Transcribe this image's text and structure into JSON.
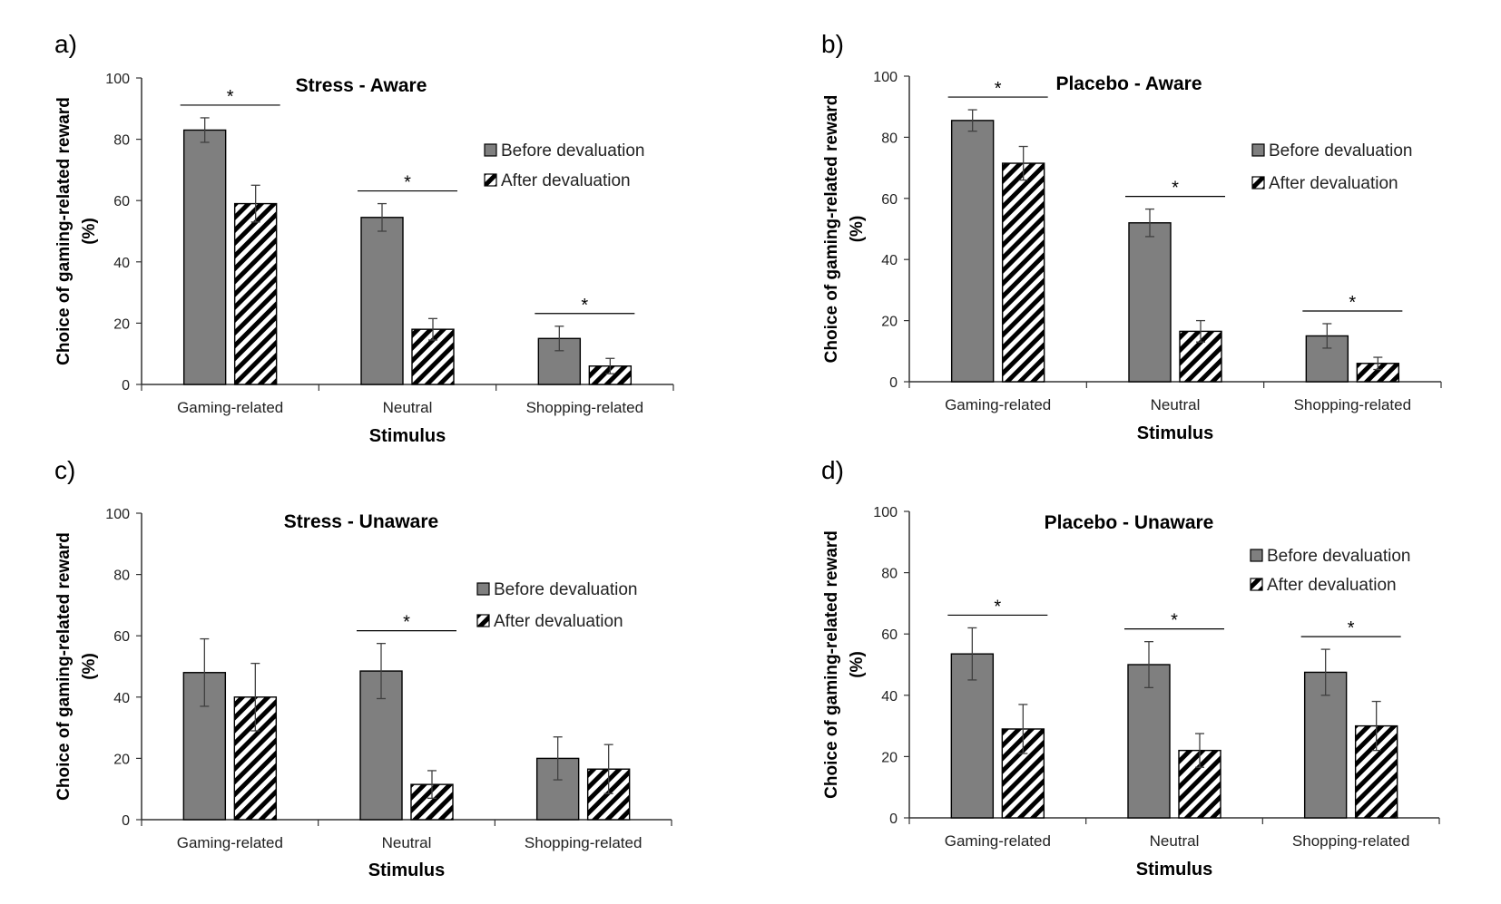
{
  "legend": {
    "before": "Before devaluation",
    "after": "After devaluation"
  },
  "colors": {
    "before_fill": "#7f7f7f",
    "axis": "#333333",
    "errorbar": "#404040"
  },
  "chart_data": [
    {
      "letter": "a)",
      "type": "bar",
      "title": "Stress - Aware",
      "xlabel": "Stimulus",
      "ylabel_line1": "Choice of gaming-related reward",
      "ylabel_line2": "(%)",
      "ylim": [
        0,
        100
      ],
      "yticks": [
        "0",
        "20",
        "40",
        "60",
        "80",
        "100"
      ],
      "categories": [
        "Gaming-related",
        "Neutral",
        "Shopping-related"
      ],
      "series": [
        {
          "name": "Before devaluation",
          "values": [
            83,
            54.5,
            15
          ],
          "errors": [
            4,
            4.5,
            4
          ]
        },
        {
          "name": "After devaluation",
          "values": [
            59,
            18,
            6
          ],
          "errors": [
            6,
            3.5,
            2.5
          ]
        }
      ],
      "significance": [
        "*",
        "*",
        "*"
      ]
    },
    {
      "letter": "b)",
      "type": "bar",
      "title": "Placebo - Aware",
      "xlabel": "Stimulus",
      "ylabel_line1": "Choice of gaming-related reward",
      "ylabel_line2": "(%)",
      "ylim": [
        0,
        100
      ],
      "yticks": [
        "0",
        "20",
        "40",
        "60",
        "80",
        "100"
      ],
      "categories": [
        "Gaming-related",
        "Neutral",
        "Shopping-related"
      ],
      "series": [
        {
          "name": "Before devaluation",
          "values": [
            85.5,
            52,
            15
          ],
          "errors": [
            3.5,
            4.5,
            4
          ]
        },
        {
          "name": "After devaluation",
          "values": [
            71.5,
            16.5,
            6
          ],
          "errors": [
            5.5,
            3.5,
            2
          ]
        }
      ],
      "significance": [
        "*",
        "*",
        "*"
      ]
    },
    {
      "letter": "c)",
      "type": "bar",
      "title": "Stress - Unaware",
      "xlabel": "Stimulus",
      "ylabel_line1": "Choice of gaming-related reward",
      "ylabel_line2": "(%)",
      "ylim": [
        0,
        100
      ],
      "yticks": [
        "0",
        "20",
        "40",
        "60",
        "80",
        "100"
      ],
      "categories": [
        "Gaming-related",
        "Neutral",
        "Shopping-related"
      ],
      "series": [
        {
          "name": "Before devaluation",
          "values": [
            48,
            48.5,
            20
          ],
          "errors": [
            11,
            9,
            7
          ]
        },
        {
          "name": "After devaluation",
          "values": [
            40,
            11.5,
            16.5
          ],
          "errors": [
            11,
            4.5,
            8
          ]
        }
      ],
      "significance": [
        "",
        "*",
        ""
      ]
    },
    {
      "letter": "d)",
      "type": "bar",
      "title": "Placebo - Unaware",
      "xlabel": "Stimulus",
      "ylabel_line1": "Choice of gaming-related reward",
      "ylabel_line2": "(%)",
      "ylim": [
        0,
        100
      ],
      "yticks": [
        "0",
        "20",
        "40",
        "60",
        "80",
        "100"
      ],
      "categories": [
        "Gaming-related",
        "Neutral",
        "Shopping-related"
      ],
      "series": [
        {
          "name": "Before devaluation",
          "values": [
            53.5,
            50,
            47.5
          ],
          "errors": [
            8.5,
            7.5,
            7.5
          ]
        },
        {
          "name": "After devaluation",
          "values": [
            29,
            22,
            30
          ],
          "errors": [
            8,
            5.5,
            8
          ]
        }
      ],
      "significance": [
        "*",
        "*",
        "*"
      ]
    }
  ]
}
